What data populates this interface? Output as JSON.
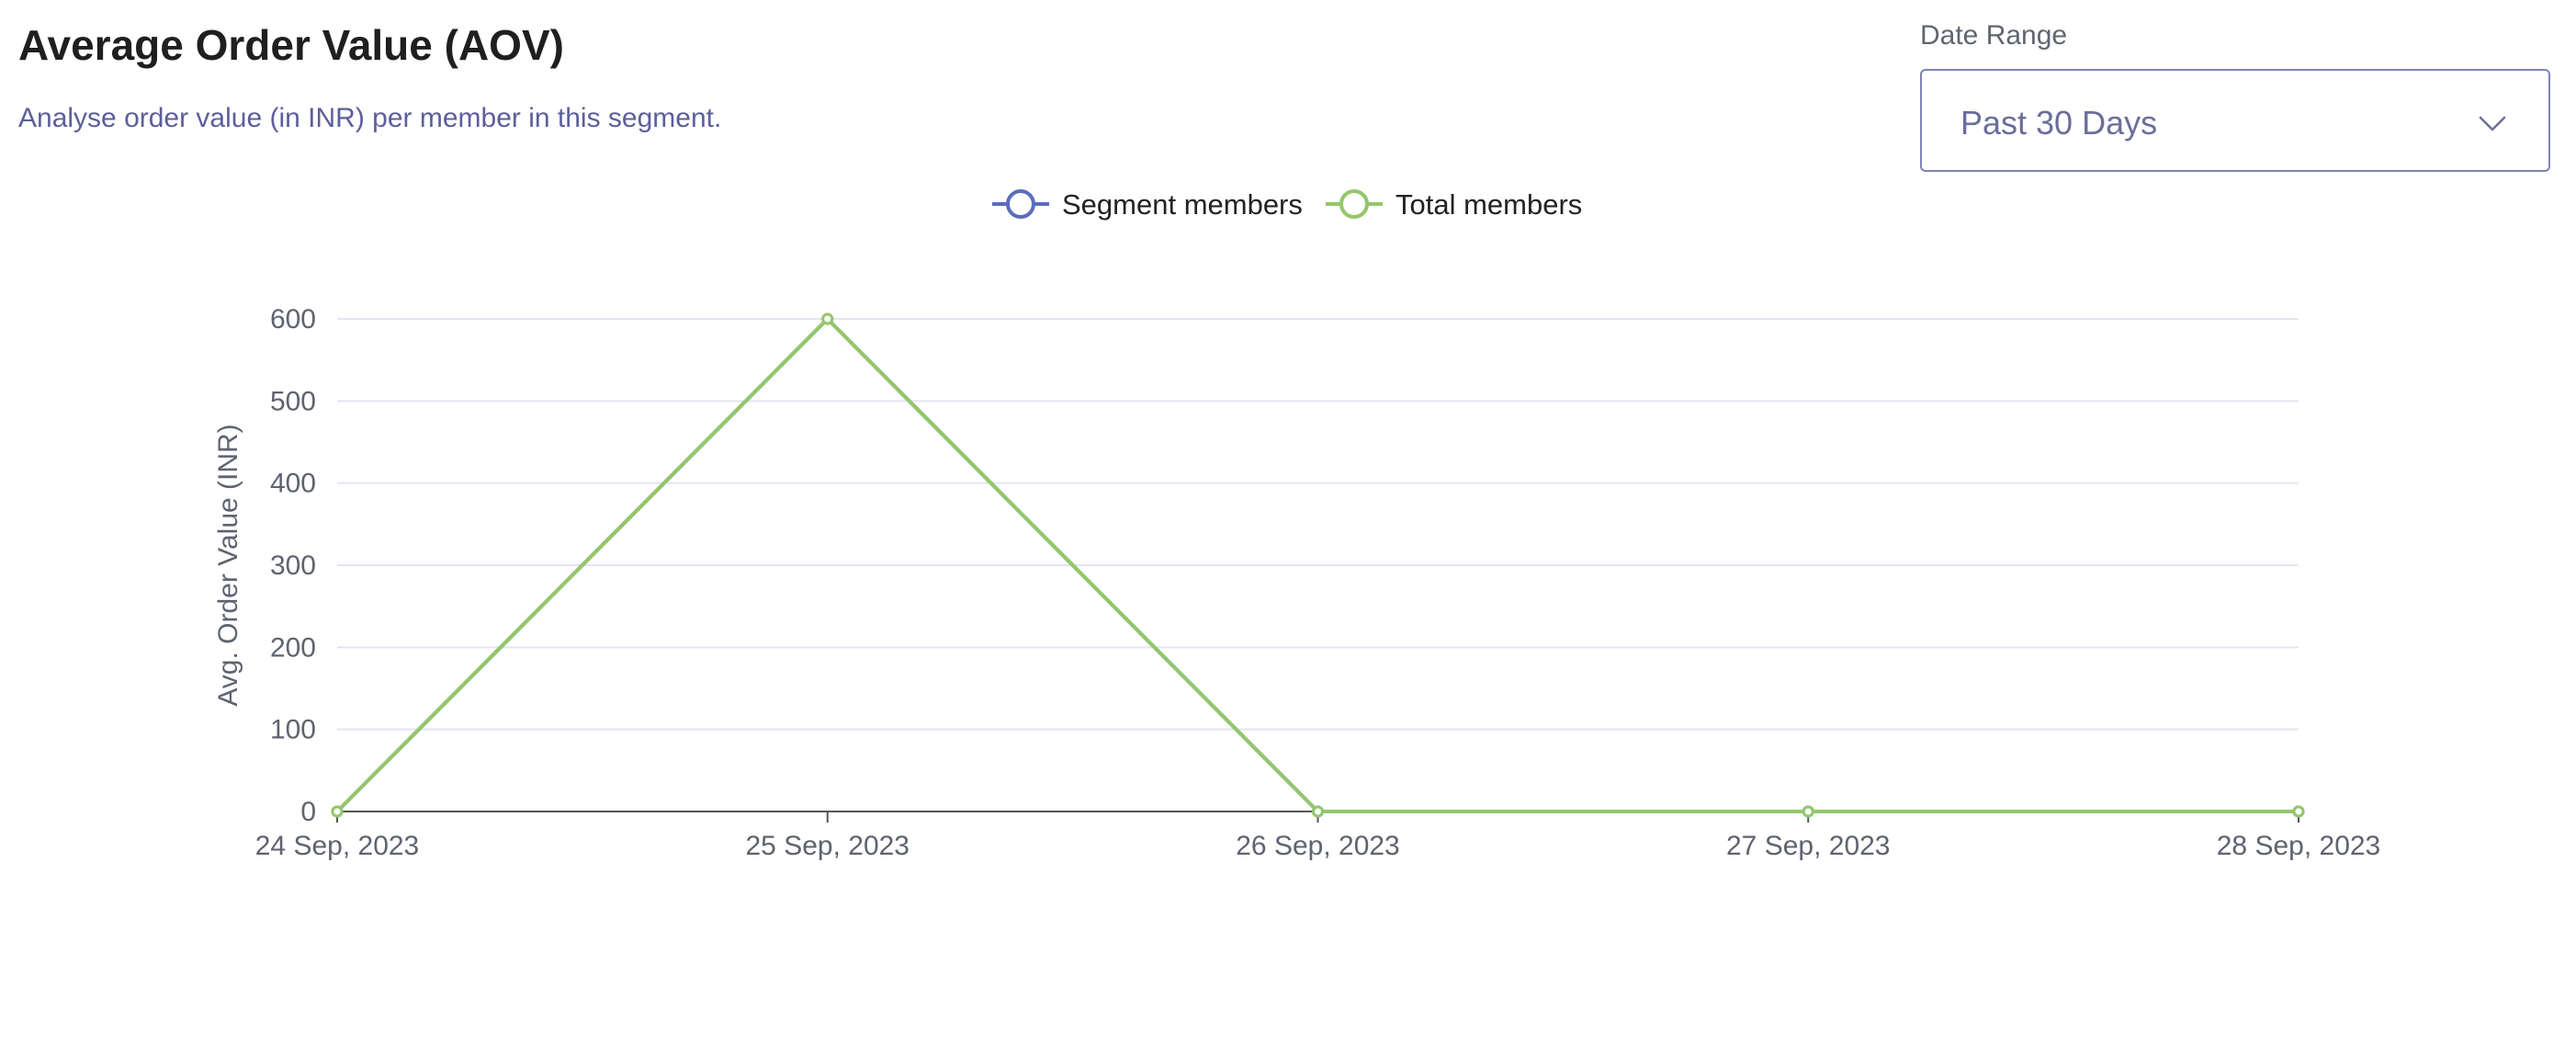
{
  "header": {
    "title": "Average Order Value (AOV)",
    "subtitle": "Analyse order value (in INR) per member in this segment."
  },
  "date_range": {
    "label": "Date Range",
    "selected": "Past 30 Days",
    "icon": "chevron-down-icon"
  },
  "colors": {
    "segment": "#5b6bc0",
    "total": "#93c76a",
    "grid": "#e3e5ee",
    "axis": "#555555"
  },
  "chart_data": {
    "type": "line",
    "categories": [
      "24 Sep, 2023",
      "25 Sep, 2023",
      "26 Sep, 2023",
      "27 Sep, 2023",
      "28 Sep, 2023"
    ],
    "series": [
      {
        "name": "Segment members",
        "values": [
          0,
          600,
          0,
          0,
          0
        ]
      },
      {
        "name": "Total members",
        "values": [
          0,
          600,
          0,
          0,
          0
        ]
      }
    ],
    "xlabel": "",
    "ylabel": "Avg. Order Value (INR)",
    "ylim": [
      0,
      600
    ],
    "yticks": [
      0,
      100,
      200,
      300,
      400,
      500,
      600
    ],
    "grid": true,
    "legend_position": "top-center"
  }
}
